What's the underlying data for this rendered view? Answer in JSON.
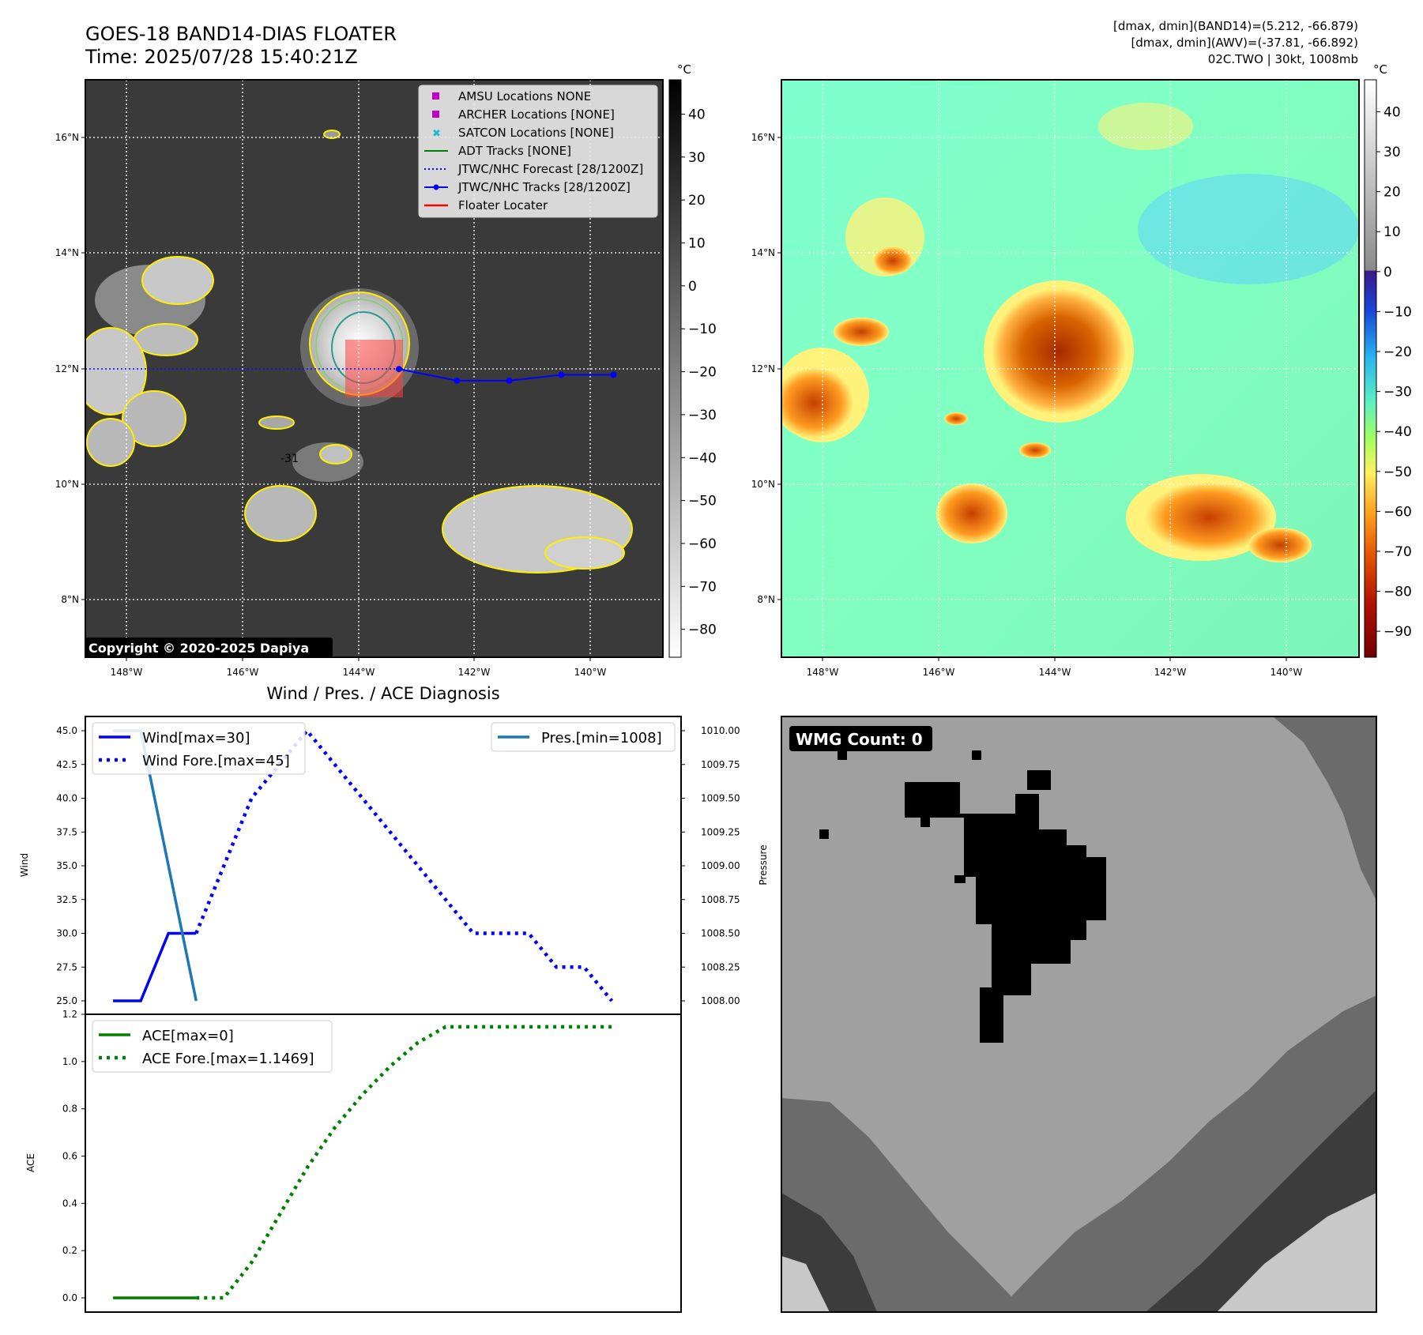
{
  "header": {
    "title": "GOES-18 BAND14-DIAS FLOATER",
    "time": "Time: 2025/07/28 15:40:21Z",
    "stats": [
      "[dmax, dmin](BAND14)=(5.212, -66.879)",
      "[dmax, dmin](AWV)=(-37.81, -66.892)",
      "02C.TWO | 30kt, 1008mb"
    ]
  },
  "maps": {
    "lat_labels": [
      "16°N",
      "14°N",
      "12°N",
      "10°N",
      "8°N"
    ],
    "lon_labels": [
      "148°W",
      "146°W",
      "144°W",
      "142°W",
      "140°W"
    ],
    "copyright": "Copyright © 2020-2025 Dapiya",
    "colorbar_unit": "°C",
    "ir_colorbar_ticks": [
      "40",
      "30",
      "20",
      "10",
      "0",
      "−10",
      "−20",
      "−30",
      "−40",
      "−50",
      "−60",
      "−70",
      "−80"
    ],
    "wv_colorbar_ticks": [
      "40",
      "30",
      "20",
      "10",
      "0",
      "−10",
      "−20",
      "−30",
      "−40",
      "−50",
      "−60",
      "−70",
      "−80",
      "−90"
    ],
    "contour_label": "-31",
    "legend": [
      {
        "label": "AMSU Locations NONE",
        "marker": "square",
        "color": "#c000c0"
      },
      {
        "label": "ARCHER Locations [NONE]",
        "marker": "square",
        "color": "#c000c0"
      },
      {
        "label": "SATCON Locations [NONE]",
        "marker": "x",
        "color": "#17becf"
      },
      {
        "label": "ADT Tracks [NONE]",
        "marker": "line",
        "color": "#008000"
      },
      {
        "label": "JTWC/NHC Forecast [28/1200Z]",
        "marker": "dotted",
        "color": "#0000ff"
      },
      {
        "label": "JTWC/NHC Tracks [28/1200Z]",
        "marker": "line-dot",
        "color": "#0000ff"
      },
      {
        "label": "Floater Locater",
        "marker": "line",
        "color": "#ff0000"
      }
    ],
    "track": [
      [
        -143.3,
        12.0
      ],
      [
        -142.3,
        11.8
      ],
      [
        -141.4,
        11.8
      ],
      [
        -140.5,
        11.9
      ],
      [
        -139.6,
        11.9
      ]
    ]
  },
  "diagnosis": {
    "title": "Wind / Pres. / ACE Diagnosis",
    "wind_ylabel": "Wind",
    "pressure_ylabel": "Pressure",
    "ace_ylabel": "ACE",
    "wind_ticks": [
      "45.0",
      "42.5",
      "40.0",
      "37.5",
      "35.0",
      "32.5",
      "30.0",
      "27.5",
      "25.0"
    ],
    "pressure_ticks": [
      "1010.00",
      "1009.75",
      "1009.50",
      "1009.25",
      "1009.00",
      "1008.75",
      "1008.50",
      "1008.25",
      "1008.00"
    ],
    "ace_ticks": [
      "1.2",
      "1.0",
      "0.8",
      "0.6",
      "0.4",
      "0.2",
      "0.0"
    ],
    "legend_wind": "Wind[max=30]",
    "legend_wind_fore": "Wind Fore.[max=45]",
    "legend_pres": "Pres.[min=1008]",
    "legend_ace": "ACE[max=0]",
    "legend_ace_fore": "ACE Fore.[max=1.1469]",
    "colors": {
      "wind": "#0000ff",
      "pres": "#1f77b4",
      "ace": "#008000"
    }
  },
  "wmg": {
    "label": "WMG Count: 0"
  },
  "chart_data": [
    {
      "type": "line",
      "title": "Wind / Pres. / ACE Diagnosis",
      "ylabel": "Wind",
      "y2label": "Pressure",
      "ylim": [
        25,
        45
      ],
      "y2lim": [
        1008,
        1010
      ],
      "series": [
        {
          "name": "Wind[max=30]",
          "axis": "left",
          "x": [
            0,
            1,
            2,
            3
          ],
          "values": [
            25,
            25,
            30,
            30
          ]
        },
        {
          "name": "Wind Fore.[max=45]",
          "axis": "left",
          "style": "dotted",
          "x": [
            3,
            4,
            5,
            6,
            7,
            8,
            9,
            10,
            11,
            12,
            13,
            14,
            15,
            16,
            17,
            18
          ],
          "values": [
            30,
            35,
            40,
            42.5,
            45,
            42.5,
            40,
            37.5,
            35,
            32.5,
            30,
            30,
            30,
            27.5,
            27.5,
            25
          ]
        },
        {
          "name": "Pres.[min=1008]",
          "axis": "right",
          "x": [
            0,
            1,
            2,
            3
          ],
          "values": [
            1010,
            1010,
            1009,
            1008
          ]
        }
      ]
    },
    {
      "type": "line",
      "ylabel": "ACE",
      "ylim": [
        0,
        1.2
      ],
      "series": [
        {
          "name": "ACE[max=0]",
          "x": [
            0,
            1,
            2,
            3
          ],
          "values": [
            0,
            0,
            0,
            0
          ]
        },
        {
          "name": "ACE Fore.[max=1.1469]",
          "style": "dotted",
          "x": [
            3,
            4,
            5,
            6,
            7,
            8,
            9,
            10,
            11,
            12,
            13,
            14,
            15,
            16,
            17,
            18
          ],
          "values": [
            0,
            0,
            0.15,
            0.35,
            0.55,
            0.72,
            0.86,
            0.98,
            1.08,
            1.1469,
            1.1469,
            1.1469,
            1.1469,
            1.1469,
            1.1469,
            1.1469
          ]
        }
      ]
    }
  ]
}
